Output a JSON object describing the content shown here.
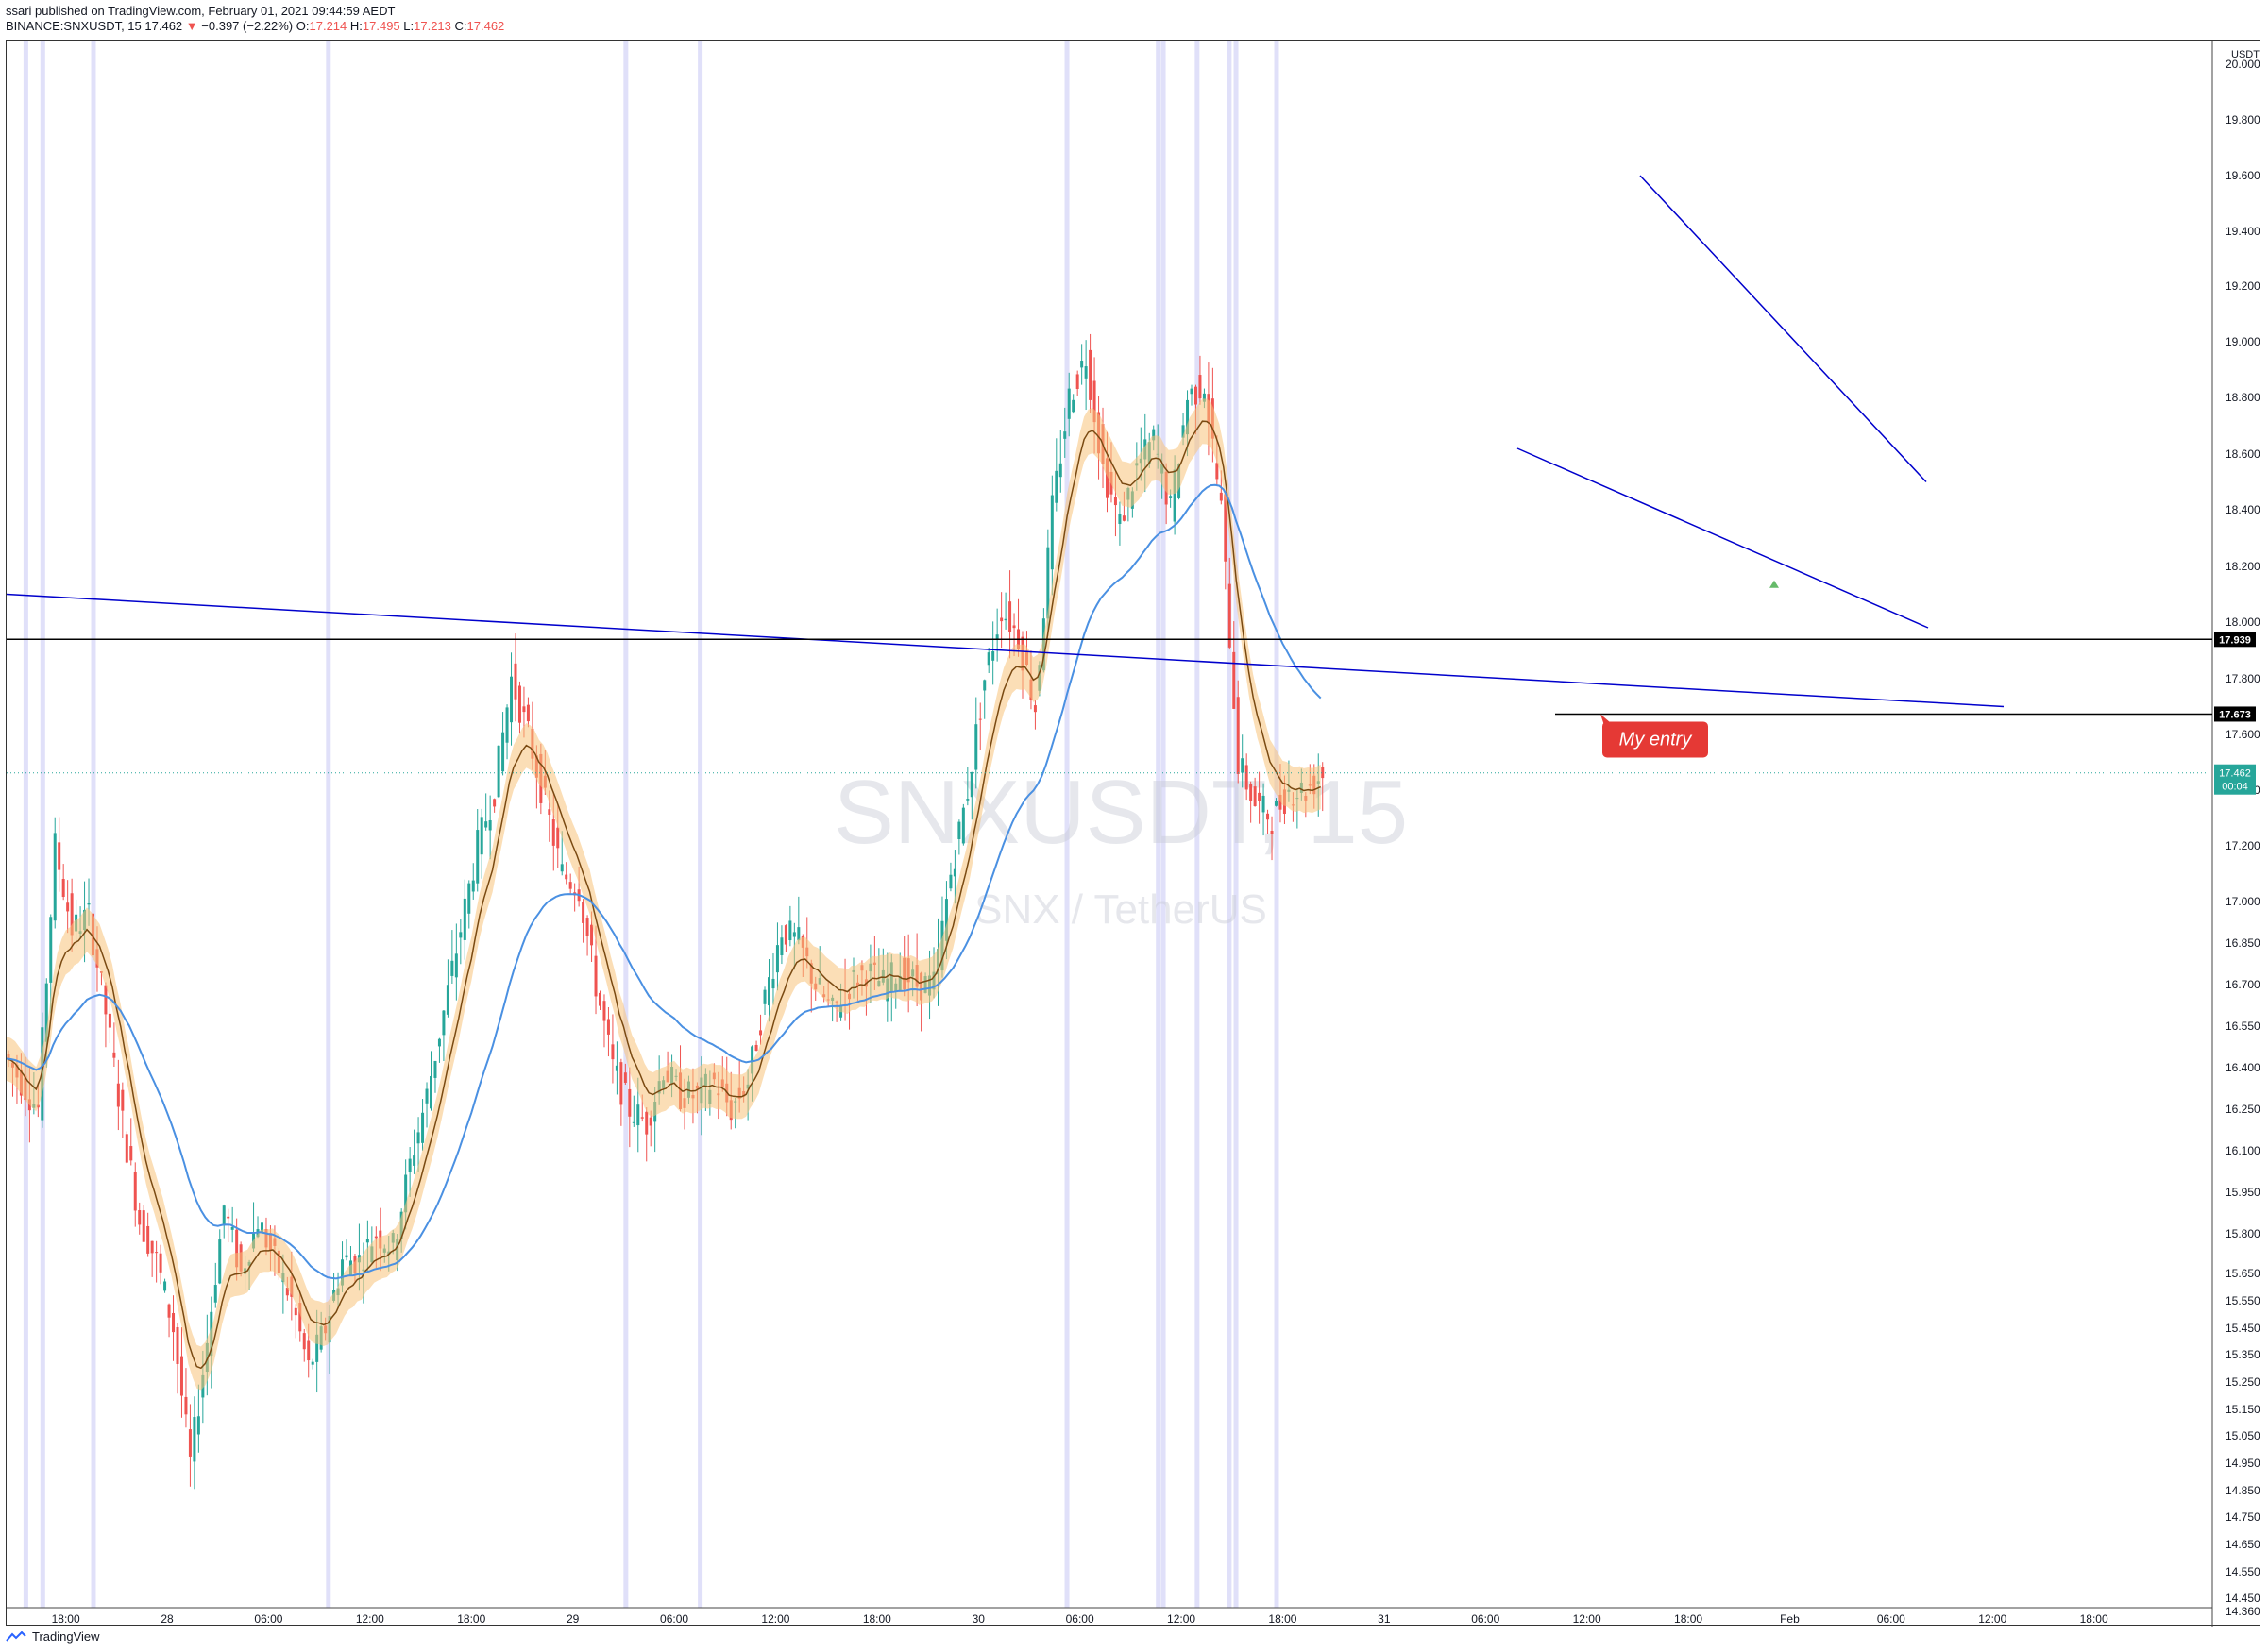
{
  "header": {
    "line1": "ssari published on TradingView.com, February 01, 2021 09:44:59 AEDT",
    "symbol": "BINANCE:SNXUSDT, 15",
    "last": "17.462",
    "change": "−0.397 (−2.22%)",
    "open_label": "O:",
    "open": "17.214",
    "high_label": "H:",
    "high": "17.495",
    "low_label": "L:",
    "low": "17.213",
    "close_label": "C:",
    "close": "17.462"
  },
  "watermark": {
    "symbol": "SNXUSDT, 15",
    "pair": "SNX / TetherUS"
  },
  "footer": {
    "brand": "TradingView"
  },
  "colors": {
    "up": "#26a69a",
    "down": "#ef5350",
    "trendline": "#0000cc",
    "ema_slow": "#4a90e2",
    "ema_fast": "#7a4a12",
    "band": "#f7c27a",
    "session": "#d8d8f8"
  },
  "chart_data": {
    "type": "candlestick",
    "currency": "USDT",
    "y_ticks": [
      14.36,
      14.45,
      14.55,
      14.65,
      14.75,
      14.85,
      14.95,
      15.05,
      15.15,
      15.25,
      15.35,
      15.45,
      15.55,
      15.65,
      15.8,
      15.95,
      16.1,
      16.25,
      16.4,
      16.55,
      16.7,
      16.85,
      17.0,
      17.2,
      17.4,
      17.6,
      17.8,
      18.0,
      18.2,
      18.4,
      18.6,
      18.8,
      19.0,
      19.2,
      19.4,
      19.6,
      19.8,
      20.0
    ],
    "y_tick_labels": [
      "14.360",
      "14.450",
      "14.550",
      "14.650",
      "14.750",
      "14.850",
      "14.950",
      "15.050",
      "15.150",
      "15.250",
      "15.350",
      "15.450",
      "15.550",
      "15.650",
      "15.800",
      "15.950",
      "16.100",
      "16.250",
      "16.400",
      "16.550",
      "16.700",
      "16.850",
      "17.000",
      "17.200",
      "17.400",
      "17.600",
      "17.800",
      "18.000",
      "18.200",
      "18.400",
      "18.600",
      "18.800",
      "19.000",
      "19.200",
      "19.400",
      "19.600",
      "19.800",
      "20.000"
    ],
    "x_labels": [
      "18:00",
      "28",
      "06:00",
      "12:00",
      "18:00",
      "29",
      "06:00",
      "12:00",
      "18:00",
      "30",
      "06:00",
      "12:00",
      "18:00",
      "31",
      "06:00",
      "12:00",
      "18:00",
      "Feb",
      "06:00",
      "12:00",
      "18:00"
    ],
    "x_label_hours": [
      18,
      24,
      30,
      36,
      42,
      48,
      54,
      60,
      66,
      72,
      78,
      84,
      90,
      96,
      102,
      108,
      114,
      120,
      126,
      132,
      138
    ],
    "series": [
      {
        "name": "price",
        "closes_hourly": [
          16.45,
          16.35,
          16.25,
          17.2,
          16.9,
          16.95,
          16.6,
          16.2,
          15.85,
          15.7,
          15.45,
          14.95,
          15.4,
          15.9,
          15.65,
          15.85,
          15.7,
          15.55,
          15.3,
          15.45,
          15.7,
          15.7,
          15.8,
          15.75,
          16.05,
          16.3,
          16.6,
          16.9,
          17.2,
          17.4,
          17.8,
          17.6,
          17.35,
          17.1,
          17.05,
          16.7,
          16.4,
          16.25,
          16.2,
          16.4,
          16.3,
          16.3,
          16.35,
          16.25,
          16.35,
          16.65,
          16.9,
          16.85,
          16.7,
          16.6,
          16.7,
          16.75,
          16.7,
          16.75,
          16.7,
          16.7,
          17.1,
          17.4,
          17.8,
          18.05,
          17.95,
          17.7,
          18.4,
          18.8,
          18.95,
          18.55,
          18.35,
          18.55,
          18.65,
          18.4,
          18.8,
          18.85,
          18.4,
          17.5,
          17.35,
          17.3,
          17.4,
          17.4,
          17.46
        ]
      },
      {
        "name": "last",
        "value": 17.462
      }
    ],
    "horizontal_lines": [
      {
        "value": 17.939,
        "label": "17.939"
      },
      {
        "value": 17.673,
        "label": "17.673"
      }
    ],
    "price_label": {
      "value": 17.462,
      "label": "17.462",
      "countdown": "00:04"
    },
    "annotation": {
      "text": "My entry",
      "price": 17.673
    },
    "grid": false
  }
}
